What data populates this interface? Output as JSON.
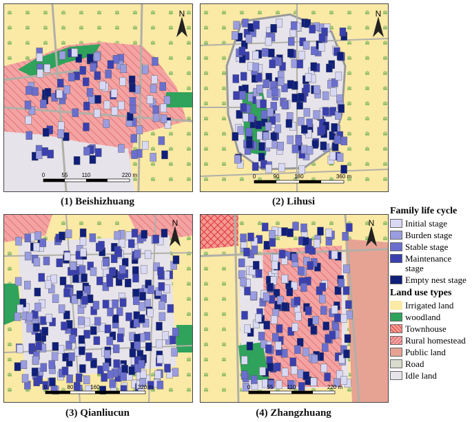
{
  "panels": [
    {
      "caption": "(1) Beishizhuang",
      "scale": [
        "0",
        "55",
        "110",
        "220 m"
      ]
    },
    {
      "caption": "(2) Lihusi",
      "scale": [
        "0",
        "90",
        "180",
        "360 m"
      ]
    },
    {
      "caption": "(3) Qianliucun",
      "scale": [
        "0",
        "80",
        "160",
        "320 m"
      ]
    },
    {
      "caption": "(4) Zhangzhuang",
      "scale": [
        "0",
        "55",
        "110",
        "220 m"
      ]
    }
  ],
  "north_label": "N",
  "legend": {
    "family_title": "Family life cycle",
    "family": [
      {
        "label": "Initial stage",
        "color": "#d9d9f5"
      },
      {
        "label": "Burden stage",
        "color": "#9a9de0"
      },
      {
        "label": "Stable stage",
        "color": "#6a6fcf"
      },
      {
        "label": "Maintenance stage",
        "color": "#3a40b0"
      },
      {
        "label": "Empty nest stage",
        "color": "#0f1f7a"
      }
    ],
    "land_title": "Land use types",
    "land": [
      {
        "label": "Irrigated land",
        "color": "#fbe9a6"
      },
      {
        "label": "woodland",
        "color": "#2fa35b"
      },
      {
        "label": "Townhouse",
        "color": "#f07070"
      },
      {
        "label": "Rural homestead",
        "color": "#f4a0a0"
      },
      {
        "label": "Public land",
        "color": "#e6a394"
      },
      {
        "label": "Road",
        "color": "#d9dccd"
      },
      {
        "label": "Idle land",
        "color": "#e6e3ea"
      }
    ]
  }
}
